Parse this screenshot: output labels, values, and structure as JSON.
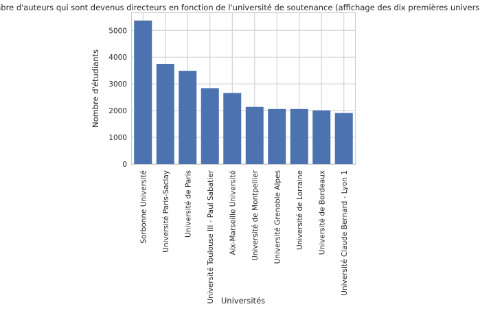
{
  "chart_data": {
    "type": "bar",
    "title": "Nombre d'auteurs qui sont devenus directeurs en fonction de l'université de soutenance (affichage des dix premières universités)",
    "xlabel": "Universités",
    "ylabel": "Nombre d'étudiants",
    "categories": [
      "Sorbonne Université",
      "Université Paris-Saclay",
      "Université de Paris",
      "Université Toulouse III - Paul Sabatier",
      "Aix-Marseille Université",
      "Université de Montpellier",
      "Université Grenoble Alpes",
      "Université de Lorraine",
      "Université de Bordeaux",
      "Université Claude Bernard - Lyon 1"
    ],
    "values": [
      5370,
      3750,
      3490,
      2840,
      2660,
      2140,
      2060,
      2060,
      2010,
      1910
    ],
    "ylim": [
      0,
      5650
    ],
    "yticks": [
      0,
      1000,
      2000,
      3000,
      4000,
      5000
    ],
    "grid": true,
    "bar_color": "#4c72b0"
  }
}
